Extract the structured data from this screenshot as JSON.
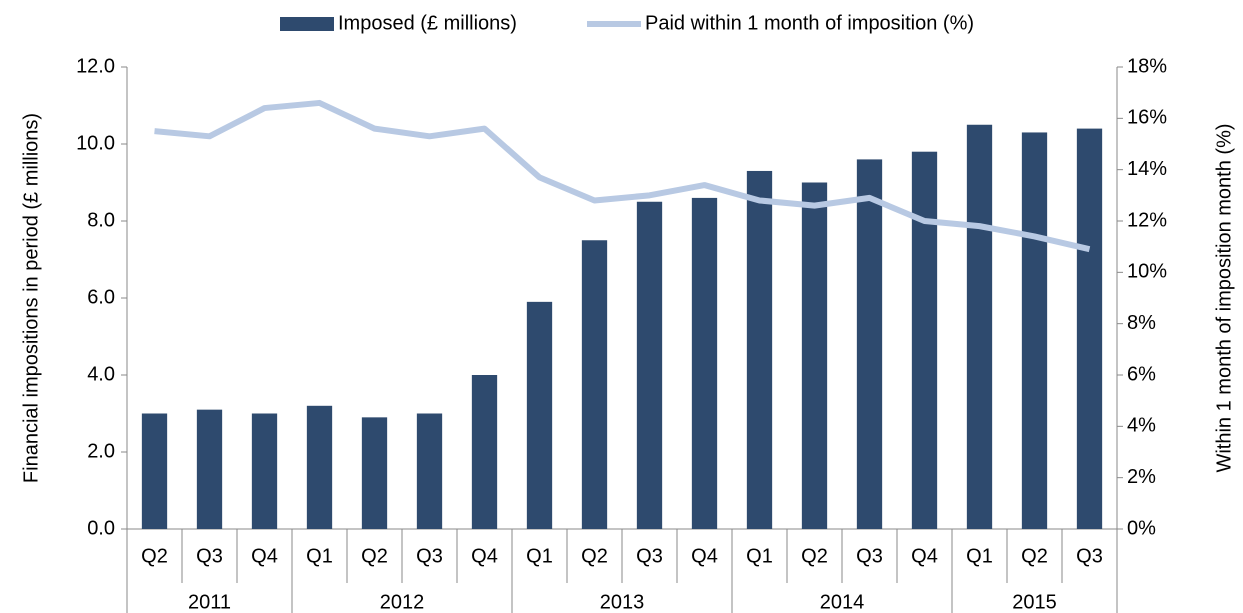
{
  "chart_data": {
    "type": "bar_line",
    "categories": [
      "Q2",
      "Q3",
      "Q4",
      "Q1",
      "Q2",
      "Q3",
      "Q4",
      "Q1",
      "Q2",
      "Q3",
      "Q4",
      "Q1",
      "Q2",
      "Q3",
      "Q4",
      "Q1",
      "Q2",
      "Q3"
    ],
    "category_groups": [
      "2011",
      "2011",
      "2011",
      "2012",
      "2012",
      "2012",
      "2012",
      "2013",
      "2013",
      "2013",
      "2013",
      "2014",
      "2014",
      "2014",
      "2014",
      "2015",
      "2015",
      "2015"
    ],
    "series": [
      {
        "name": "Imposed (£ millions)",
        "color": "#2e4a6e",
        "type": "bar",
        "axis": "y",
        "values": [
          3.0,
          3.1,
          3.0,
          3.2,
          2.9,
          3.0,
          4.0,
          5.9,
          7.5,
          8.5,
          8.6,
          9.3,
          9.0,
          9.6,
          9.8,
          10.5,
          10.3,
          10.4
        ]
      },
      {
        "name": "Paid within 1 month of imposition (%)",
        "color": "#b8c9e3",
        "type": "line",
        "axis": "y2",
        "values": [
          15.5,
          15.3,
          16.4,
          16.6,
          15.6,
          15.3,
          15.6,
          13.7,
          12.8,
          13.0,
          13.4,
          12.8,
          12.6,
          12.9,
          12.0,
          11.8,
          11.4,
          10.9
        ]
      }
    ],
    "ylabel": "Financial impositions in period (£ millions)",
    "y2label": "Within 1 month of imposition month (%)",
    "ylim": [
      0,
      12
    ],
    "yticks": [
      {
        "value": 0,
        "label": "0.0"
      },
      {
        "value": 2,
        "label": "2.0"
      },
      {
        "value": 4,
        "label": "4.0"
      },
      {
        "value": 6,
        "label": "6.0"
      },
      {
        "value": 8,
        "label": "8.0"
      },
      {
        "value": 10,
        "label": "10.0"
      },
      {
        "value": 12,
        "label": "12.0"
      }
    ],
    "y2lim": [
      0,
      18
    ],
    "y2ticks": [
      {
        "value": 0,
        "label": "0%"
      },
      {
        "value": 2,
        "label": "2%"
      },
      {
        "value": 4,
        "label": "4%"
      },
      {
        "value": 6,
        "label": "6%"
      },
      {
        "value": 8,
        "label": "8%"
      },
      {
        "value": 10,
        "label": "10%"
      },
      {
        "value": 12,
        "label": "12%"
      },
      {
        "value": 14,
        "label": "14%"
      },
      {
        "value": 16,
        "label": "16%"
      },
      {
        "value": 18,
        "label": "18%"
      }
    ],
    "legend": "top"
  }
}
